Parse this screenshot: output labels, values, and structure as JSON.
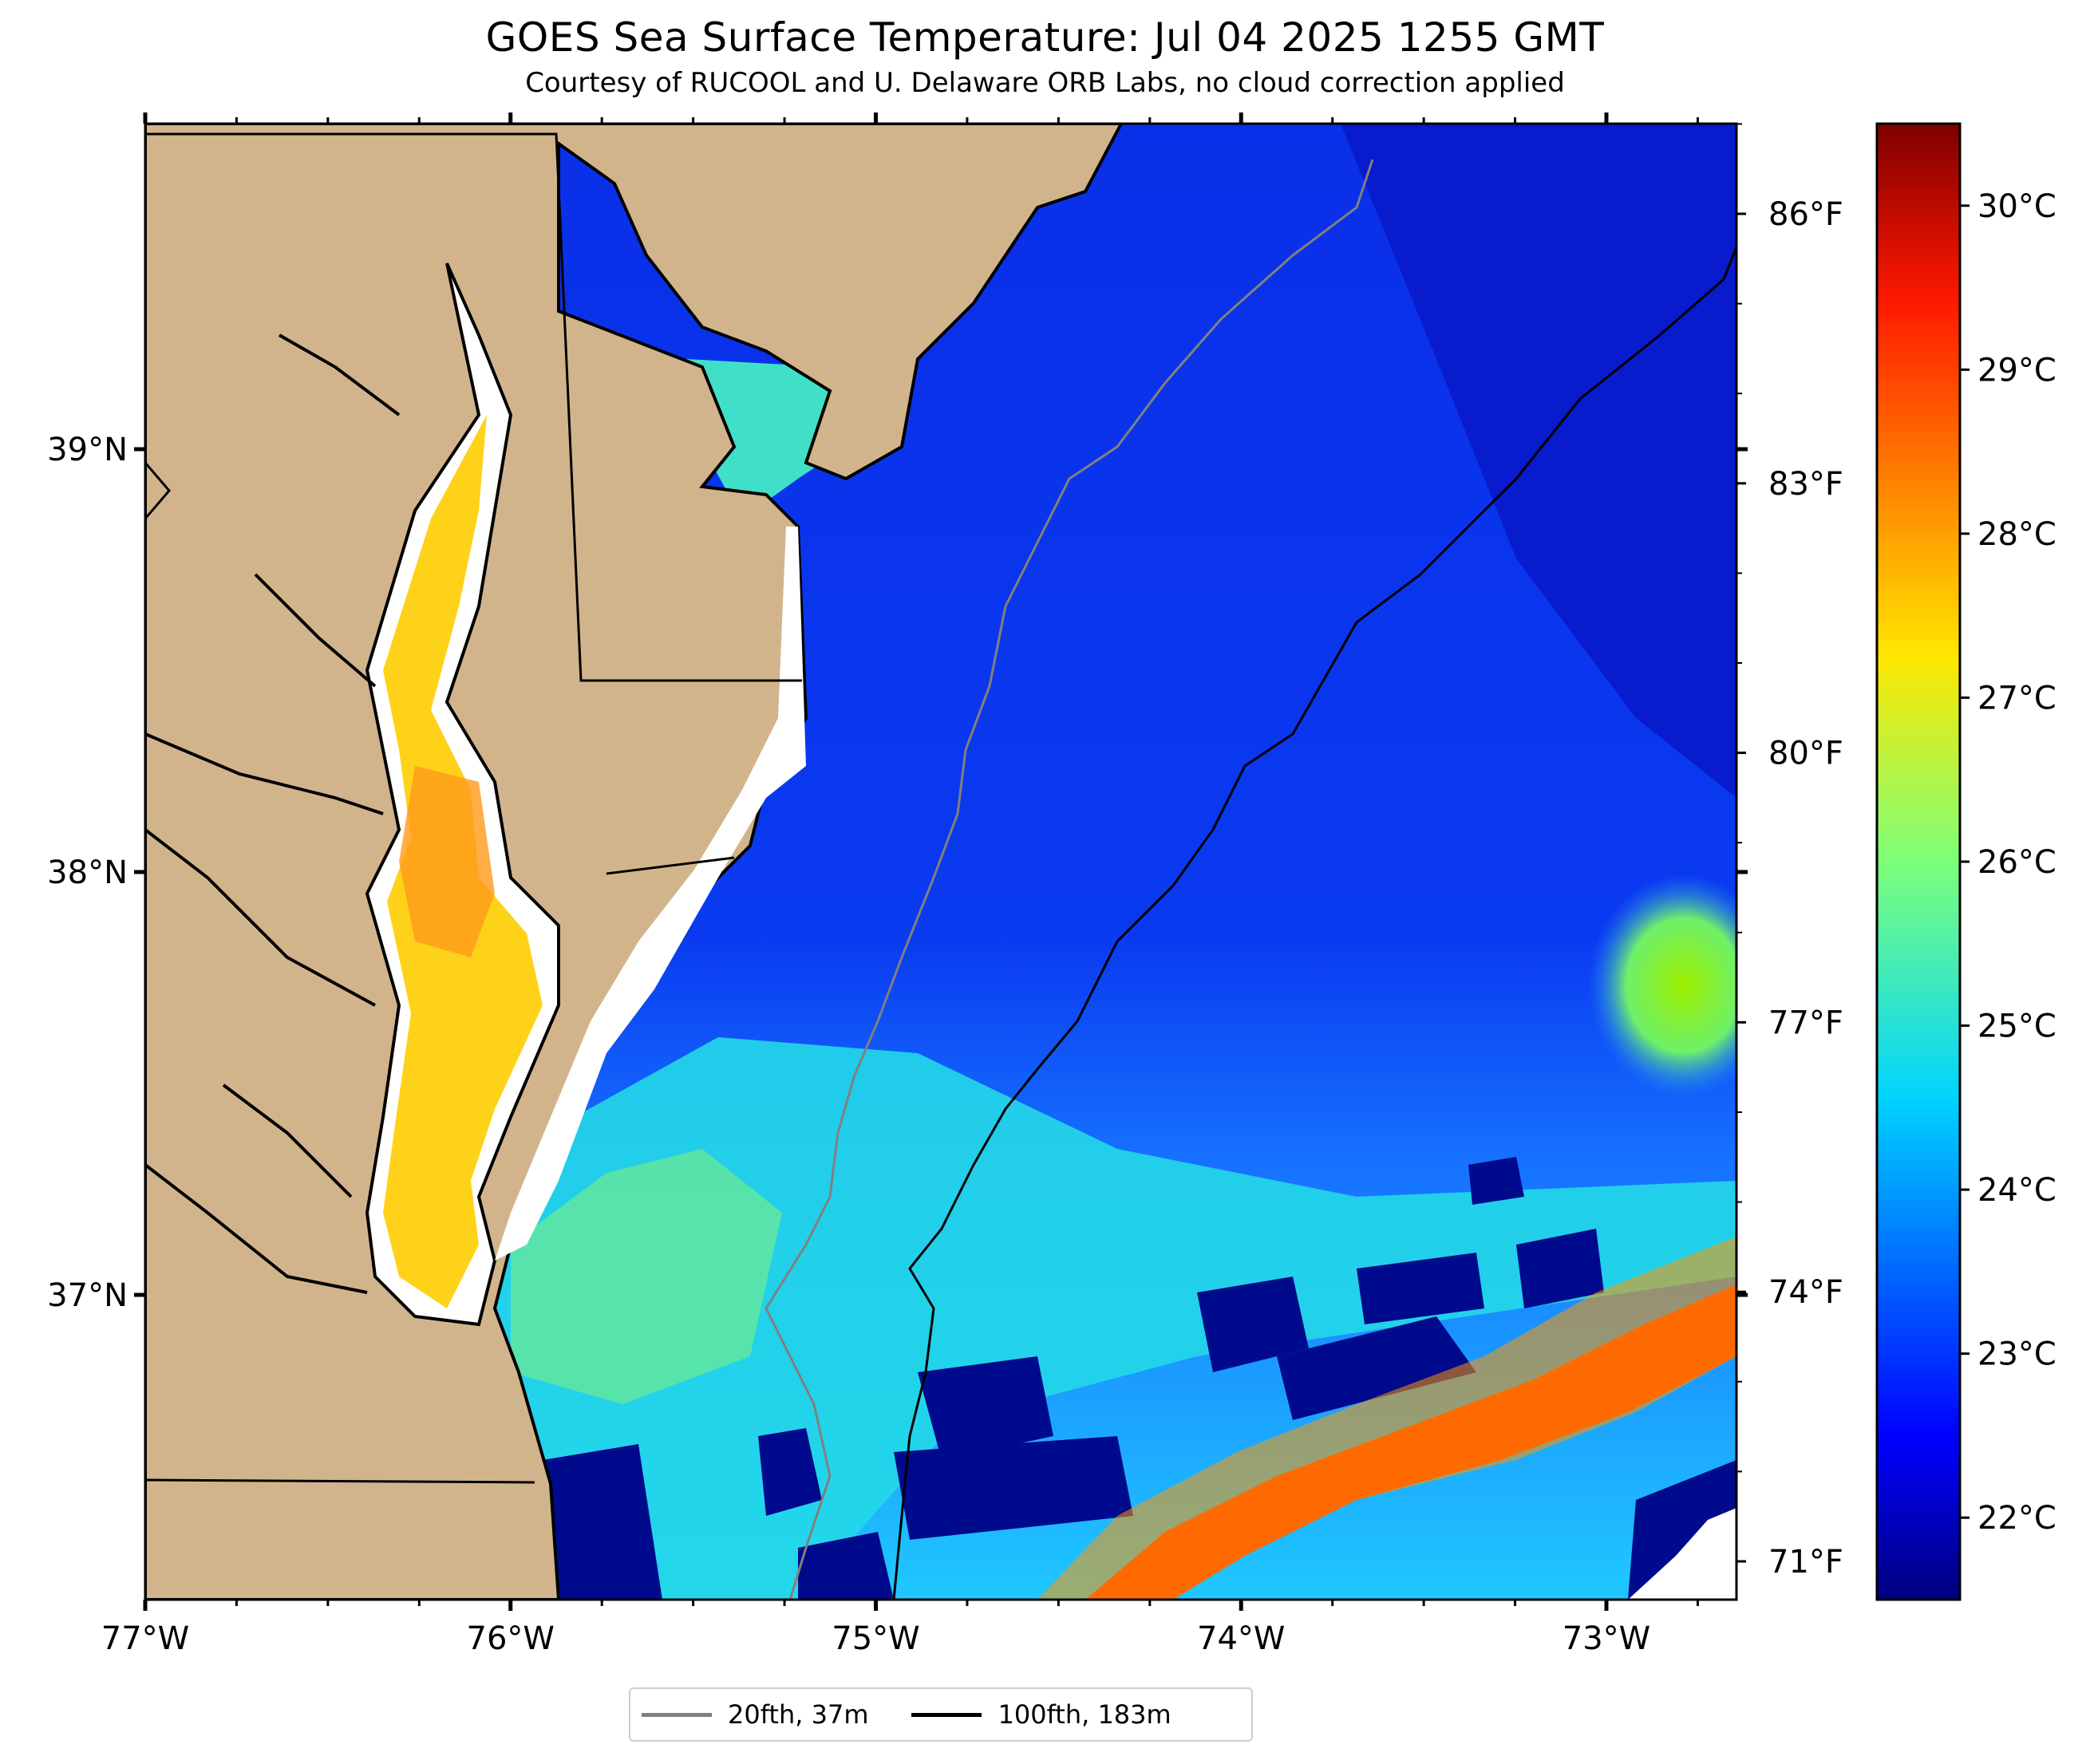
{
  "header": {
    "title": "GOES Sea Surface Temperature: Jul 04 2025 1255 GMT",
    "subtitle": "Courtesy of RUCOOL and U. Delaware ORB Labs, no cloud correction applied"
  },
  "map": {
    "x_ticks": [
      {
        "value": -77,
        "label": "77°W"
      },
      {
        "value": -76,
        "label": "76°W"
      },
      {
        "value": -75,
        "label": "75°W"
      },
      {
        "value": -74,
        "label": "74°W"
      },
      {
        "value": -73,
        "label": "73°W"
      }
    ],
    "y_ticks": [
      {
        "value": 39,
        "label": "39°N"
      },
      {
        "value": 38,
        "label": "38°N"
      },
      {
        "value": 37,
        "label": "37°N"
      }
    ],
    "fahrenheit_ticks": [
      {
        "value": 86,
        "label": "86°F"
      },
      {
        "value": 83,
        "label": "83°F"
      },
      {
        "value": 80,
        "label": "80°F"
      },
      {
        "value": 77,
        "label": "77°F"
      },
      {
        "value": 74,
        "label": "74°F"
      },
      {
        "value": 71,
        "label": "71°F"
      }
    ],
    "colors": {
      "land": "#d2b48c",
      "warm_water": "#ff7a00",
      "cold_water": "#0010a0",
      "no_data": "#ffffff"
    }
  },
  "colorbar": {
    "ticks": [
      {
        "value": 30,
        "label": "30°C"
      },
      {
        "value": 29,
        "label": "29°C"
      },
      {
        "value": 28,
        "label": "28°C"
      },
      {
        "value": 27,
        "label": "27°C"
      },
      {
        "value": 26,
        "label": "26°C"
      },
      {
        "value": 25,
        "label": "25°C"
      },
      {
        "value": 24,
        "label": "24°C"
      },
      {
        "value": 23,
        "label": "23°C"
      },
      {
        "value": 22,
        "label": "22°C"
      }
    ],
    "range": [
      21.5,
      30.5
    ],
    "colormap": "jet"
  },
  "legend": {
    "items": [
      {
        "label": "20fth, 37m",
        "color": "#808080"
      },
      {
        "label": "100fth, 183m",
        "color": "#000000"
      }
    ]
  }
}
